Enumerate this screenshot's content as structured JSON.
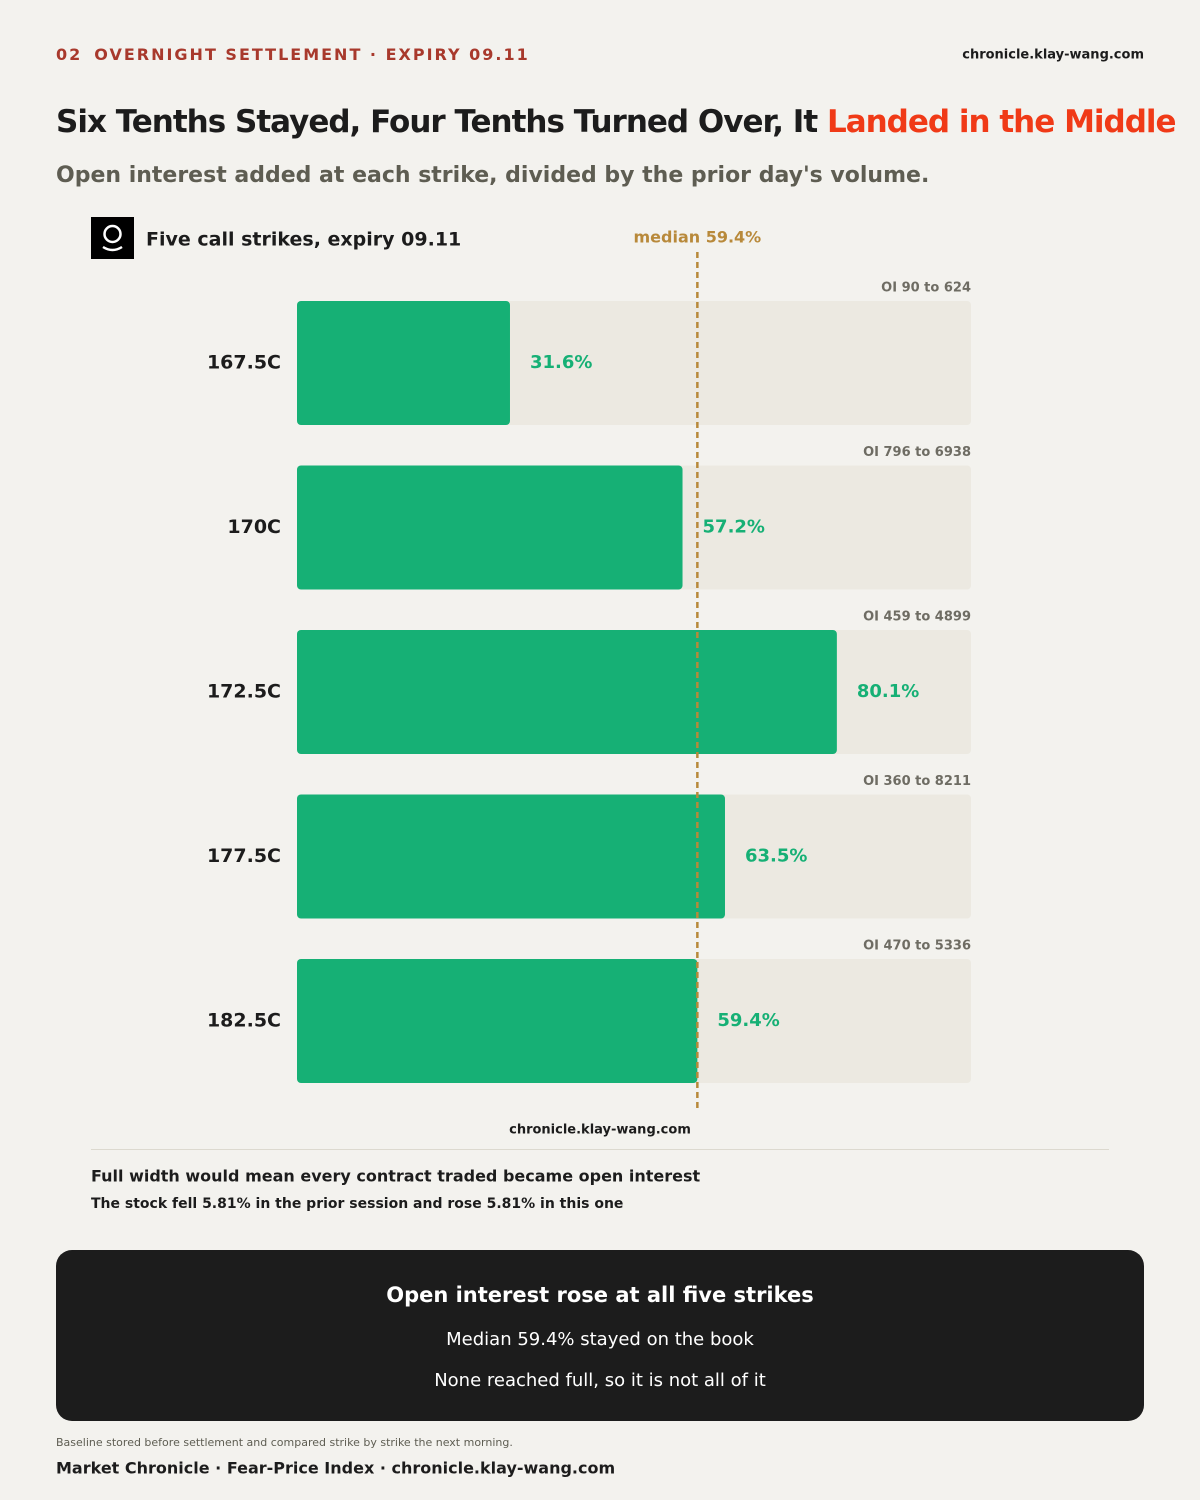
{
  "header": {
    "number": "02",
    "kicker": "OVERNIGHT SETTLEMENT · EXPIRY 09.11",
    "site": "chronicle.klay-wang.com"
  },
  "title": {
    "main": "Six Tenths Stayed, Four Tenths Turned Over, It ",
    "highlight": "Landed in the Middle"
  },
  "subtitle": "Open interest added at each strike, divided by the prior day's volume.",
  "chart_data": {
    "type": "bar",
    "orientation": "horizontal",
    "title": "Five call strikes, expiry 09.11",
    "categories": [
      "167.5C",
      "170C",
      "172.5C",
      "177.5C",
      "182.5C"
    ],
    "values": [
      31.6,
      57.2,
      80.1,
      63.5,
      59.4
    ],
    "value_labels": [
      "31.6%",
      "57.2%",
      "80.1%",
      "63.5%",
      "59.4%"
    ],
    "annotations": [
      "OI 90 to 624",
      "OI 796 to 6938",
      "OI 459 to 4899",
      "OI 360 to 8211",
      "OI 470 to 5336"
    ],
    "median": {
      "value": 59.4,
      "label": "median 59.4%"
    },
    "xlim": [
      0,
      100
    ],
    "color": "#16b075",
    "track_color": "#ece9e1",
    "source": "chronicle.klay-wang.com"
  },
  "notes": [
    "Full width would mean every contract traded became open interest",
    "The stock fell 5.81% in the prior session and rose 5.81% in this one"
  ],
  "summary": {
    "title": "Open interest rose at all five strikes",
    "lines": [
      "Median 59.4% stayed on the book",
      "None reached full, so it is not all of it"
    ]
  },
  "footer": {
    "note": "Baseline stored before settlement and compared strike by strike the next morning.",
    "credit": "Market Chronicle · Fear-Price Index · chronicle.klay-wang.com"
  }
}
